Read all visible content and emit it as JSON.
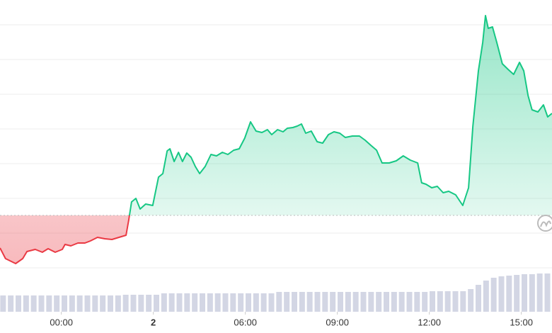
{
  "chart_data": {
    "type": "line",
    "xticks": [
      {
        "value": 0,
        "label": "00:00"
      },
      {
        "value": 3,
        "label": "2"
      },
      {
        "value": 6,
        "label": "06:00"
      },
      {
        "value": 9,
        "label": "09:00"
      },
      {
        "value": 12,
        "label": "12:00"
      },
      {
        "value": 15,
        "label": "15:00"
      }
    ],
    "xlim": [
      -2,
      16
    ],
    "ylim": [
      0,
      440
    ],
    "baseline": 136,
    "up_color": "#16c784",
    "down_color": "#ea3943",
    "price": {
      "x": [
        -2.0,
        -1.82,
        -1.49,
        -1.26,
        -1.12,
        -0.85,
        -0.62,
        -0.43,
        -0.2,
        0.03,
        0.12,
        0.31,
        0.54,
        0.77,
        0.95,
        1.18,
        1.42,
        1.65,
        1.88,
        2.11,
        2.2,
        2.29,
        2.43,
        2.57,
        2.75,
        2.98,
        3.17,
        3.31,
        3.45,
        3.54,
        3.68,
        3.82,
        3.95,
        4.09,
        4.23,
        4.37,
        4.51,
        4.69,
        4.88,
        5.06,
        5.25,
        5.43,
        5.62,
        5.8,
        5.98,
        6.17,
        6.35,
        6.54,
        6.72,
        6.86,
        7.05,
        7.23,
        7.37,
        7.55,
        7.69,
        7.83,
        7.97,
        8.15,
        8.34,
        8.52,
        8.71,
        8.89,
        9.08,
        9.26,
        9.49,
        9.72,
        9.91,
        10.09,
        10.28,
        10.46,
        10.69,
        10.92,
        11.15,
        11.38,
        11.62,
        11.75,
        11.89,
        12.08,
        12.26,
        12.45,
        12.63,
        12.86,
        13.09,
        13.28,
        13.42,
        13.6,
        13.74,
        13.83,
        13.92,
        14.06,
        14.2,
        14.38,
        14.57,
        14.75,
        14.94,
        15.08,
        15.22,
        15.35,
        15.54,
        15.72,
        15.86,
        16.0
      ],
      "values": [
        90,
        75,
        68,
        75,
        85,
        88,
        84,
        89,
        84,
        88,
        95,
        93,
        97,
        97,
        100,
        105,
        103,
        102,
        105,
        108,
        130,
        155,
        160,
        145,
        152,
        150,
        190,
        195,
        227,
        230,
        212,
        225,
        212,
        224,
        218,
        205,
        195,
        205,
        222,
        220,
        225,
        222,
        228,
        230,
        245,
        268,
        255,
        253,
        257,
        250,
        257,
        254,
        259,
        260,
        262,
        265,
        252,
        255,
        240,
        238,
        250,
        254,
        252,
        246,
        248,
        248,
        242,
        235,
        228,
        210,
        210,
        213,
        220,
        214,
        210,
        182,
        180,
        175,
        177,
        168,
        170,
        165,
        150,
        175,
        262,
        340,
        380,
        418,
        400,
        402,
        380,
        350,
        342,
        335,
        352,
        340,
        305,
        285,
        282,
        292,
        275,
        280
      ]
    },
    "volume": {
      "color": "#d3d6e4",
      "x": [
        -1.9,
        -1.65,
        -1.4,
        -1.15,
        -0.9,
        -0.65,
        -0.4,
        -0.15,
        0.1,
        0.35,
        0.6,
        0.85,
        1.1,
        1.35,
        1.6,
        1.85,
        2.1,
        2.35,
        2.6,
        2.85,
        3.1,
        3.35,
        3.6,
        3.85,
        4.1,
        4.35,
        4.6,
        4.85,
        5.1,
        5.35,
        5.6,
        5.85,
        6.1,
        6.35,
        6.6,
        6.85,
        7.1,
        7.35,
        7.6,
        7.85,
        8.1,
        8.35,
        8.6,
        8.85,
        9.1,
        9.35,
        9.6,
        9.85,
        10.1,
        10.35,
        10.6,
        10.85,
        11.1,
        11.35,
        11.6,
        11.85,
        12.1,
        12.35,
        12.6,
        12.85,
        13.1,
        13.35,
        13.6,
        13.85,
        14.1,
        14.35,
        14.6,
        14.85,
        15.1,
        15.35,
        15.6,
        15.85
      ],
      "values": [
        23,
        23,
        23,
        23,
        23,
        23,
        23,
        23,
        23,
        23,
        23,
        23,
        23,
        23,
        23,
        23,
        24,
        24,
        24,
        24,
        24,
        26,
        26,
        26,
        26,
        26,
        26,
        26,
        26,
        26,
        26,
        26,
        26,
        26,
        26,
        26,
        28,
        28,
        28,
        28,
        28,
        28,
        28,
        28,
        28,
        28,
        28,
        28,
        28,
        28,
        28,
        28,
        28,
        28,
        28,
        28,
        29,
        29,
        29,
        29,
        29,
        32,
        38,
        44,
        48,
        50,
        51,
        52,
        53,
        53,
        54,
        54
      ]
    }
  }
}
